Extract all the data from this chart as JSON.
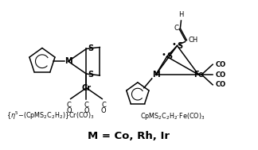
{
  "background_color": "#ffffff",
  "title_text": "M = Co, Rh, Ir",
  "title_fontsize": 9.5,
  "title_bold": true,
  "label_left": "{η⁵−(CpMS₂C₂H₂)}Cr(CO)₃",
  "label_right": "CpMS₂C₂H₂·Fe(CO)₃",
  "label_fontsize": 5.8,
  "line_color": "#000000",
  "line_width": 1.1,
  "fig_width": 3.24,
  "fig_height": 1.89,
  "dpi": 100
}
